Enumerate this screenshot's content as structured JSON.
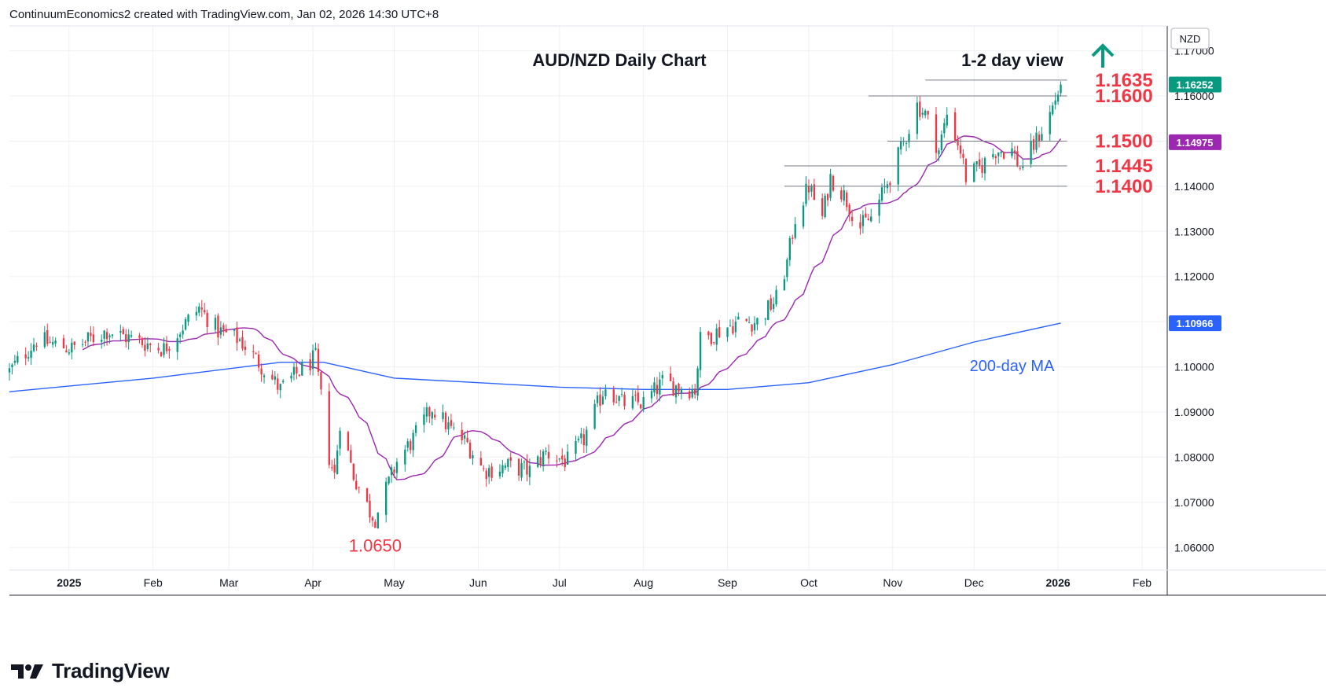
{
  "header": {
    "attribution": "ContinuumEconomics2 created with TradingView.com, Jan 02, 2026 14:30 UTC+8"
  },
  "footer": {
    "brand": "TradingView"
  },
  "colors": {
    "up": "#089981",
    "down": "#f23645",
    "ma20": "#9c27b0",
    "ma200": "#2962ff",
    "level_text": "#f23645",
    "arrow": "#089981",
    "price_tag": "#089981",
    "ma20_tag": "#9c27b0",
    "ma200_tag": "#2962ff"
  },
  "chart_data": {
    "type": "candlestick",
    "title": "AUD/NZD Daily Chart",
    "view_label": "1-2 day view",
    "direction_icon": "up-arrow-icon",
    "currency": "NZD",
    "ylim": [
      1.055,
      1.1755
    ],
    "y_ticks": [
      "1.06000",
      "1.07000",
      "1.08000",
      "1.09000",
      "1.10000",
      "1.11000",
      "1.12000",
      "1.13000",
      "1.14000",
      "1.15000",
      "1.16000",
      "1.17000"
    ],
    "x_ticks": [
      {
        "label": "2025",
        "date": "2025-01-01",
        "bold": true
      },
      {
        "label": "Feb",
        "date": "2025-02-01"
      },
      {
        "label": "Mar",
        "date": "2025-03-01"
      },
      {
        "label": "Apr",
        "date": "2025-04-01"
      },
      {
        "label": "May",
        "date": "2025-05-01"
      },
      {
        "label": "Jun",
        "date": "2025-06-01"
      },
      {
        "label": "Jul",
        "date": "2025-07-01"
      },
      {
        "label": "Aug",
        "date": "2025-08-01"
      },
      {
        "label": "Sep",
        "date": "2025-09-01"
      },
      {
        "label": "Oct",
        "date": "2025-10-01"
      },
      {
        "label": "Nov",
        "date": "2025-11-01"
      },
      {
        "label": "Dec",
        "date": "2025-12-01"
      },
      {
        "label": "2026",
        "date": "2026-01-01",
        "bold": true
      },
      {
        "label": "Feb",
        "date": "2026-02-01"
      }
    ],
    "x_range": [
      "2024-12-10",
      "2026-02-10"
    ],
    "levels": [
      {
        "label": "1.1635",
        "value": 1.1635,
        "from": "2025-11-13"
      },
      {
        "label": "1.1600",
        "value": 1.16,
        "from": "2025-10-23"
      },
      {
        "label": "1.1500",
        "value": 1.15,
        "from": "2025-10-30"
      },
      {
        "label": "1.1445",
        "value": 1.1445,
        "from": "2025-09-22"
      },
      {
        "label": "1.1400",
        "value": 1.14,
        "from": "2025-09-22"
      }
    ],
    "annotations": [
      {
        "text": "1.0650",
        "date": "2025-04-24",
        "value": 1.065
      },
      {
        "text": "200-day MA",
        "date": "2025-12-15",
        "value": 1.1015
      }
    ],
    "price_tags": [
      {
        "label": "1.16252",
        "value": 1.16252,
        "role": "last"
      },
      {
        "label": "1.14975",
        "value": 1.14975,
        "role": "ma20"
      },
      {
        "label": "1.10966",
        "value": 1.10966,
        "role": "ma200"
      }
    ],
    "path_anchors": [
      [
        "2024-12-10",
        1.099
      ],
      [
        "2024-12-20",
        1.106
      ],
      [
        "2025-01-02",
        1.104
      ],
      [
        "2025-01-15",
        1.108
      ],
      [
        "2025-01-25",
        1.106
      ],
      [
        "2025-02-05",
        1.104
      ],
      [
        "2025-02-12",
        1.109
      ],
      [
        "2025-02-18",
        1.113
      ],
      [
        "2025-02-25",
        1.108
      ],
      [
        "2025-03-05",
        1.106
      ],
      [
        "2025-03-12",
        1.101
      ],
      [
        "2025-03-20",
        1.095
      ],
      [
        "2025-03-27",
        1.099
      ],
      [
        "2025-04-02",
        1.102
      ],
      [
        "2025-04-07",
        1.08
      ],
      [
        "2025-04-09",
        1.076
      ],
      [
        "2025-04-11",
        1.088
      ],
      [
        "2025-04-16",
        1.076
      ],
      [
        "2025-04-22",
        1.068
      ],
      [
        "2025-04-24",
        1.0665
      ],
      [
        "2025-05-02",
        1.079
      ],
      [
        "2025-05-08",
        1.084
      ],
      [
        "2025-05-15",
        1.091
      ],
      [
        "2025-05-22",
        1.086
      ],
      [
        "2025-05-28",
        1.083
      ],
      [
        "2025-06-03",
        1.077
      ],
      [
        "2025-06-12",
        1.078
      ],
      [
        "2025-06-20",
        1.077
      ],
      [
        "2025-06-26",
        1.081
      ],
      [
        "2025-07-04",
        1.079
      ],
      [
        "2025-07-10",
        1.084
      ],
      [
        "2025-07-18",
        1.096
      ],
      [
        "2025-07-24",
        1.092
      ],
      [
        "2025-08-01",
        1.092
      ],
      [
        "2025-08-08",
        1.0965
      ],
      [
        "2025-08-14",
        1.0955
      ],
      [
        "2025-08-20",
        1.095
      ],
      [
        "2025-08-22",
        1.106
      ],
      [
        "2025-08-29",
        1.108
      ],
      [
        "2025-09-05",
        1.11
      ],
      [
        "2025-09-12",
        1.11
      ],
      [
        "2025-09-19",
        1.115
      ],
      [
        "2025-09-23",
        1.123
      ],
      [
        "2025-09-26",
        1.133
      ],
      [
        "2025-10-01",
        1.14
      ],
      [
        "2025-10-06",
        1.133
      ],
      [
        "2025-10-09",
        1.142
      ],
      [
        "2025-10-14",
        1.138
      ],
      [
        "2025-10-20",
        1.131
      ],
      [
        "2025-10-24",
        1.133
      ],
      [
        "2025-10-28",
        1.138
      ],
      [
        "2025-11-04",
        1.148
      ],
      [
        "2025-11-10",
        1.158
      ],
      [
        "2025-11-13",
        1.156
      ],
      [
        "2025-11-18",
        1.148
      ],
      [
        "2025-11-21",
        1.156
      ],
      [
        "2025-11-26",
        1.148
      ],
      [
        "2025-11-28",
        1.142
      ],
      [
        "2025-12-03",
        1.144
      ],
      [
        "2025-12-09",
        1.148
      ],
      [
        "2025-12-15",
        1.148
      ],
      [
        "2025-12-18",
        1.144
      ],
      [
        "2025-12-23",
        1.149
      ],
      [
        "2025-12-29",
        1.156
      ],
      [
        "2026-01-02",
        1.1625
      ]
    ],
    "series": [
      {
        "name": "AUD/NZD",
        "kind": "candles"
      },
      {
        "name": "200-day MA",
        "kind": "line",
        "values": [
          [
            "2024-12-10",
            1.0945
          ],
          [
            "2025-02-01",
            1.0975
          ],
          [
            "2025-03-20",
            1.101
          ],
          [
            "2025-04-05",
            1.101
          ],
          [
            "2025-05-01",
            1.0975
          ],
          [
            "2025-06-01",
            1.0965
          ],
          [
            "2025-07-01",
            1.0955
          ],
          [
            "2025-08-01",
            1.095
          ],
          [
            "2025-09-01",
            1.095
          ],
          [
            "2025-10-01",
            1.0965
          ],
          [
            "2025-11-01",
            1.1005
          ],
          [
            "2025-12-01",
            1.1055
          ],
          [
            "2026-01-02",
            1.1097
          ]
        ]
      },
      {
        "kind": "line",
        "values": []
      }
    ]
  }
}
